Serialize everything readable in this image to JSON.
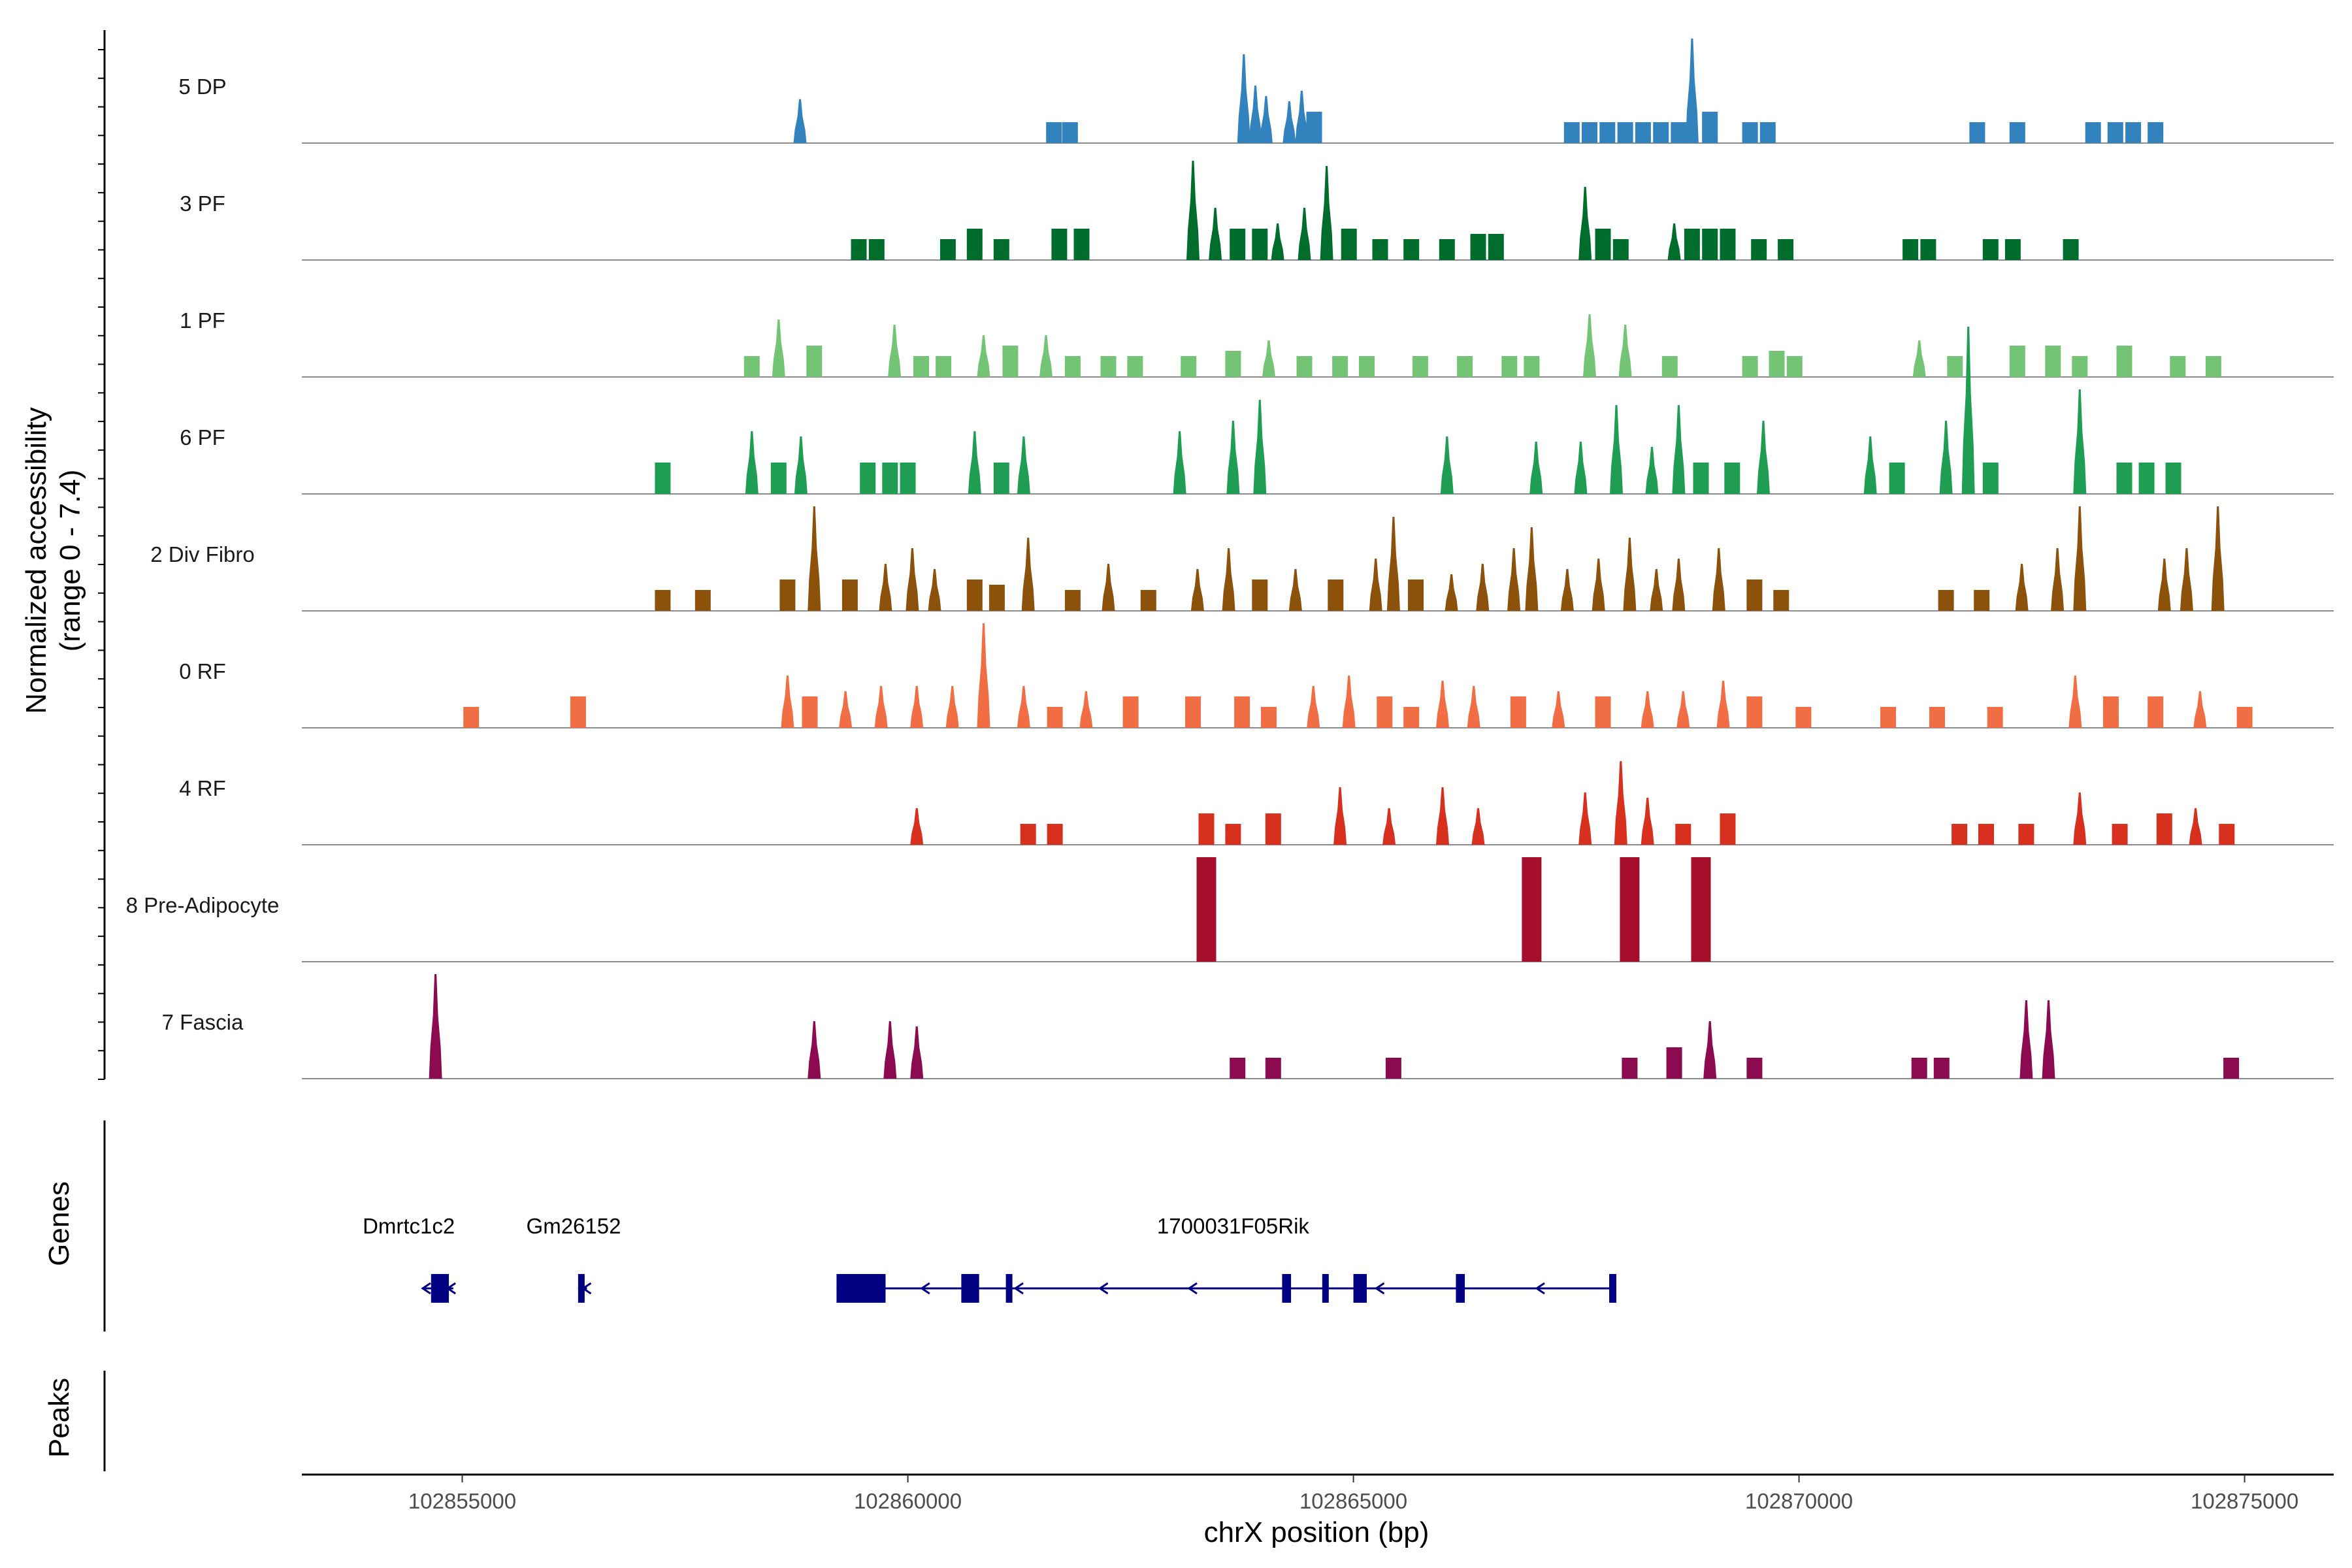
{
  "chart_data": {
    "type": "area",
    "title": "",
    "xlabel": "chrX position (bp)",
    "ylabel_line1": "Normalized accessibility",
    "ylabel_line2": "(range 0 - 7.4)",
    "y_range": [
      0,
      7.4
    ],
    "x_range": [
      102853200,
      102876000
    ],
    "x_ticks": [
      102855000,
      102860000,
      102865000,
      102870000,
      102875000
    ],
    "x_tick_labels": [
      "102855000",
      "102860000",
      "102865000",
      "102870000",
      "102875000"
    ],
    "tracks": [
      {
        "name": "5 DP",
        "color": "#3182BD",
        "peaks": [
          [
            102858790,
            0.42
          ],
          [
            102861640,
            0.2
          ],
          [
            102861820,
            0.2
          ],
          [
            102863770,
            0.85
          ],
          [
            102863900,
            0.55
          ],
          [
            102864020,
            0.45
          ],
          [
            102864280,
            0.4
          ],
          [
            102864420,
            0.5
          ],
          [
            102864560,
            0.3
          ],
          [
            102867450,
            0.2
          ],
          [
            102867650,
            0.2
          ],
          [
            102867850,
            0.2
          ],
          [
            102868050,
            0.2
          ],
          [
            102868250,
            0.2
          ],
          [
            102868450,
            0.2
          ],
          [
            102868650,
            0.2
          ],
          [
            102868800,
            1.0
          ],
          [
            102869000,
            0.3
          ],
          [
            102869450,
            0.2
          ],
          [
            102869650,
            0.2
          ],
          [
            102872000,
            0.2
          ],
          [
            102872450,
            0.2
          ],
          [
            102873300,
            0.2
          ],
          [
            102873550,
            0.2
          ],
          [
            102873750,
            0.2
          ],
          [
            102874000,
            0.2
          ]
        ]
      },
      {
        "name": "3 PF",
        "color": "#006D2C",
        "peaks": [
          [
            102859450,
            0.2
          ],
          [
            102859650,
            0.2
          ],
          [
            102860450,
            0.2
          ],
          [
            102860750,
            0.3
          ],
          [
            102861050,
            0.2
          ],
          [
            102861700,
            0.3
          ],
          [
            102861950,
            0.3
          ],
          [
            102863200,
            0.95
          ],
          [
            102863450,
            0.5
          ],
          [
            102863700,
            0.3
          ],
          [
            102863950,
            0.3
          ],
          [
            102864150,
            0.35
          ],
          [
            102864450,
            0.5
          ],
          [
            102864700,
            0.9
          ],
          [
            102864950,
            0.3
          ],
          [
            102865300,
            0.2
          ],
          [
            102865650,
            0.2
          ],
          [
            102866050,
            0.2
          ],
          [
            102866400,
            0.25
          ],
          [
            102866600,
            0.25
          ],
          [
            102867600,
            0.7
          ],
          [
            102867800,
            0.3
          ],
          [
            102868000,
            0.2
          ],
          [
            102868600,
            0.35
          ],
          [
            102868800,
            0.3
          ],
          [
            102869000,
            0.3
          ],
          [
            102869200,
            0.3
          ],
          [
            102869550,
            0.2
          ],
          [
            102869850,
            0.2
          ],
          [
            102871250,
            0.2
          ],
          [
            102871450,
            0.2
          ],
          [
            102872150,
            0.2
          ],
          [
            102872400,
            0.2
          ],
          [
            102873050,
            0.2
          ]
        ]
      },
      {
        "name": "1 PF",
        "color": "#74C476",
        "peaks": [
          [
            102858250,
            0.2
          ],
          [
            102858550,
            0.55
          ],
          [
            102858950,
            0.3
          ],
          [
            102859850,
            0.5
          ],
          [
            102860150,
            0.2
          ],
          [
            102860400,
            0.2
          ],
          [
            102860850,
            0.4
          ],
          [
            102861150,
            0.3
          ],
          [
            102861550,
            0.4
          ],
          [
            102861850,
            0.2
          ],
          [
            102862250,
            0.2
          ],
          [
            102862550,
            0.2
          ],
          [
            102863150,
            0.2
          ],
          [
            102863650,
            0.25
          ],
          [
            102864050,
            0.35
          ],
          [
            102864450,
            0.2
          ],
          [
            102864850,
            0.2
          ],
          [
            102865150,
            0.2
          ],
          [
            102865750,
            0.2
          ],
          [
            102866250,
            0.2
          ],
          [
            102866750,
            0.2
          ],
          [
            102867000,
            0.2
          ],
          [
            102867650,
            0.6
          ],
          [
            102868050,
            0.5
          ],
          [
            102868550,
            0.2
          ],
          [
            102869450,
            0.2
          ],
          [
            102869750,
            0.25
          ],
          [
            102869950,
            0.2
          ],
          [
            102871350,
            0.35
          ],
          [
            102871750,
            0.2
          ],
          [
            102872450,
            0.3
          ],
          [
            102872850,
            0.3
          ],
          [
            102873150,
            0.2
          ],
          [
            102873650,
            0.3
          ],
          [
            102874250,
            0.2
          ],
          [
            102874650,
            0.2
          ]
        ]
      },
      {
        "name": "6 PF",
        "color": "#1F9E53",
        "peaks": [
          [
            102857250,
            0.3
          ],
          [
            102858250,
            0.6
          ],
          [
            102858550,
            0.3
          ],
          [
            102858800,
            0.55
          ],
          [
            102859550,
            0.3
          ],
          [
            102859800,
            0.3
          ],
          [
            102860000,
            0.3
          ],
          [
            102860750,
            0.6
          ],
          [
            102861050,
            0.3
          ],
          [
            102861300,
            0.55
          ],
          [
            102863050,
            0.6
          ],
          [
            102863650,
            0.7
          ],
          [
            102863950,
            0.9
          ],
          [
            102866050,
            0.55
          ],
          [
            102867050,
            0.5
          ],
          [
            102867550,
            0.5
          ],
          [
            102867950,
            0.85
          ],
          [
            102868350,
            0.45
          ],
          [
            102868650,
            0.85
          ],
          [
            102868900,
            0.3
          ],
          [
            102869250,
            0.3
          ],
          [
            102869600,
            0.7
          ],
          [
            102870800,
            0.55
          ],
          [
            102871100,
            0.3
          ],
          [
            102871650,
            0.7
          ],
          [
            102871900,
            1.6
          ],
          [
            102872150,
            0.3
          ],
          [
            102873150,
            1.0
          ],
          [
            102873650,
            0.3
          ],
          [
            102873900,
            0.3
          ],
          [
            102874200,
            0.3
          ]
        ]
      },
      {
        "name": "2 Div Fibro",
        "color": "#8C510A",
        "peaks": [
          [
            102857250,
            0.2
          ],
          [
            102857700,
            0.2
          ],
          [
            102858650,
            0.3
          ],
          [
            102858950,
            1.0
          ],
          [
            102859350,
            0.3
          ],
          [
            102859750,
            0.45
          ],
          [
            102860050,
            0.6
          ],
          [
            102860300,
            0.4
          ],
          [
            102860750,
            0.3
          ],
          [
            102861000,
            0.25
          ],
          [
            102861350,
            0.7
          ],
          [
            102861850,
            0.2
          ],
          [
            102862250,
            0.45
          ],
          [
            102862700,
            0.2
          ],
          [
            102863250,
            0.4
          ],
          [
            102863600,
            0.6
          ],
          [
            102863950,
            0.3
          ],
          [
            102864350,
            0.4
          ],
          [
            102864800,
            0.3
          ],
          [
            102865250,
            0.5
          ],
          [
            102865450,
            0.9
          ],
          [
            102865700,
            0.3
          ],
          [
            102866100,
            0.35
          ],
          [
            102866450,
            0.45
          ],
          [
            102866800,
            0.6
          ],
          [
            102867000,
            0.8
          ],
          [
            102867400,
            0.4
          ],
          [
            102867750,
            0.5
          ],
          [
            102868100,
            0.7
          ],
          [
            102868400,
            0.4
          ],
          [
            102868650,
            0.5
          ],
          [
            102869100,
            0.6
          ],
          [
            102869500,
            0.3
          ],
          [
            102869800,
            0.2
          ],
          [
            102871650,
            0.2
          ],
          [
            102872050,
            0.2
          ],
          [
            102872500,
            0.45
          ],
          [
            102872900,
            0.6
          ],
          [
            102873150,
            1.0
          ],
          [
            102874100,
            0.5
          ],
          [
            102874350,
            0.6
          ],
          [
            102874700,
            1.0
          ]
        ]
      },
      {
        "name": "0 RF",
        "color": "#F16D43",
        "peaks": [
          [
            102855100,
            0.2
          ],
          [
            102856300,
            0.3
          ],
          [
            102858650,
            0.5
          ],
          [
            102858900,
            0.3
          ],
          [
            102859300,
            0.35
          ],
          [
            102859700,
            0.4
          ],
          [
            102860100,
            0.4
          ],
          [
            102860500,
            0.4
          ],
          [
            102860850,
            1.0
          ],
          [
            102861300,
            0.4
          ],
          [
            102861650,
            0.2
          ],
          [
            102862000,
            0.35
          ],
          [
            102862500,
            0.3
          ],
          [
            102863200,
            0.3
          ],
          [
            102863750,
            0.3
          ],
          [
            102864050,
            0.2
          ],
          [
            102864550,
            0.4
          ],
          [
            102864950,
            0.5
          ],
          [
            102865350,
            0.3
          ],
          [
            102865650,
            0.2
          ],
          [
            102866000,
            0.45
          ],
          [
            102866350,
            0.4
          ],
          [
            102866850,
            0.3
          ],
          [
            102867300,
            0.35
          ],
          [
            102867800,
            0.3
          ],
          [
            102868300,
            0.35
          ],
          [
            102868700,
            0.35
          ],
          [
            102869150,
            0.45
          ],
          [
            102869500,
            0.3
          ],
          [
            102870050,
            0.2
          ],
          [
            102871000,
            0.2
          ],
          [
            102871550,
            0.2
          ],
          [
            102872200,
            0.2
          ],
          [
            102873100,
            0.5
          ],
          [
            102873500,
            0.3
          ],
          [
            102874000,
            0.3
          ],
          [
            102874500,
            0.35
          ],
          [
            102875000,
            0.2
          ]
        ]
      },
      {
        "name": "4 RF",
        "color": "#D7301F",
        "peaks": [
          [
            102860100,
            0.35
          ],
          [
            102861350,
            0.2
          ],
          [
            102861650,
            0.2
          ],
          [
            102863350,
            0.3
          ],
          [
            102863650,
            0.2
          ],
          [
            102864100,
            0.3
          ],
          [
            102864850,
            0.55
          ],
          [
            102865400,
            0.35
          ],
          [
            102866000,
            0.55
          ],
          [
            102866400,
            0.35
          ],
          [
            102867600,
            0.5
          ],
          [
            102868000,
            0.8
          ],
          [
            102868300,
            0.45
          ],
          [
            102868700,
            0.2
          ],
          [
            102869200,
            0.3
          ],
          [
            102871800,
            0.2
          ],
          [
            102872100,
            0.2
          ],
          [
            102872550,
            0.2
          ],
          [
            102873150,
            0.5
          ],
          [
            102873600,
            0.2
          ],
          [
            102874100,
            0.3
          ],
          [
            102874450,
            0.35
          ],
          [
            102874800,
            0.2
          ]
        ]
      },
      {
        "name": "8 Pre-Adipocyte",
        "color": "#A50F2B",
        "peaks": [
          [
            102863350,
            1.0
          ],
          [
            102867000,
            1.0
          ],
          [
            102868100,
            1.0
          ],
          [
            102868900,
            1.0
          ]
        ]
      },
      {
        "name": "7 Fascia",
        "color": "#8B0A50",
        "peaks": [
          [
            102854700,
            1.0
          ],
          [
            102858950,
            0.55
          ],
          [
            102859800,
            0.55
          ],
          [
            102860100,
            0.5
          ],
          [
            102863700,
            0.2
          ],
          [
            102864100,
            0.2
          ],
          [
            102865450,
            0.2
          ],
          [
            102868100,
            0.2
          ],
          [
            102868600,
            0.3
          ],
          [
            102869000,
            0.55
          ],
          [
            102869500,
            0.2
          ],
          [
            102871350,
            0.2
          ],
          [
            102871600,
            0.2
          ],
          [
            102872550,
            0.75
          ],
          [
            102872800,
            0.75
          ],
          [
            102874850,
            0.2
          ]
        ]
      }
    ],
    "genes_panel_label": "Genes",
    "peaks_panel_label": "Peaks",
    "gene_color": "#000080",
    "genes": [
      {
        "name": "Dmrtc1c2",
        "label_x": 102854400,
        "line": [
          102854550,
          102854900
        ],
        "exons": [
          [
            102854650,
            102854850
          ]
        ],
        "arrows": [
          102854600,
          102854880
        ]
      },
      {
        "name": "Gm26152",
        "label_x": 102856250,
        "line": [
          102856300,
          102856400
        ],
        "exons": [
          [
            102856300,
            102856360
          ]
        ],
        "arrows": [
          102856400
        ]
      },
      {
        "name": "1700031F05Rik",
        "label_x": 102863650,
        "line": [
          102859200,
          102867950
        ],
        "exons": [
          [
            102859200,
            102859750
          ],
          [
            102860600,
            102860800
          ],
          [
            102861100,
            102861150
          ],
          [
            102864200,
            102864300
          ],
          [
            102864650,
            102864700
          ],
          [
            102865000,
            102865150
          ],
          [
            102866150,
            102866250
          ],
          [
            102867870,
            102867950
          ]
        ],
        "arrows": [
          102860200,
          102861250,
          102862200,
          102863200,
          102865300,
          102867100
        ]
      }
    ]
  }
}
